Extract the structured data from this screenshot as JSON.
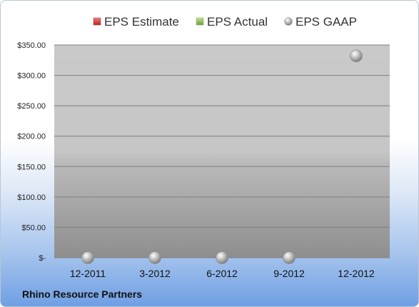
{
  "footer_label": "Rhino Resource Partners",
  "legend": [
    {
      "label": "EPS Estimate",
      "color": "#c0392b",
      "marker": "square"
    },
    {
      "label": "EPS Actual",
      "color": "#8bb04f",
      "marker": "square"
    },
    {
      "label": "EPS GAAP",
      "color": "#a0a0a0",
      "marker": "circle"
    }
  ],
  "chart_data": {
    "type": "scatter",
    "categories": [
      "12-2011",
      "3-2012",
      "6-2012",
      "9-2012",
      "12-2012"
    ],
    "y_tick_labels": [
      "$-",
      "$50.00",
      "$100.00",
      "$150.00",
      "$200.00",
      "$250.00",
      "$300.00",
      "$350.00"
    ],
    "ylim": [
      0,
      350
    ],
    "grid": true,
    "legend_position": "top",
    "series": [
      {
        "name": "EPS Estimate",
        "values": [
          null,
          null,
          null,
          null,
          null
        ]
      },
      {
        "name": "EPS Actual",
        "values": [
          null,
          null,
          null,
          null,
          null
        ]
      },
      {
        "name": "EPS GAAP",
        "values": [
          0,
          0,
          0,
          0,
          332
        ]
      }
    ]
  }
}
